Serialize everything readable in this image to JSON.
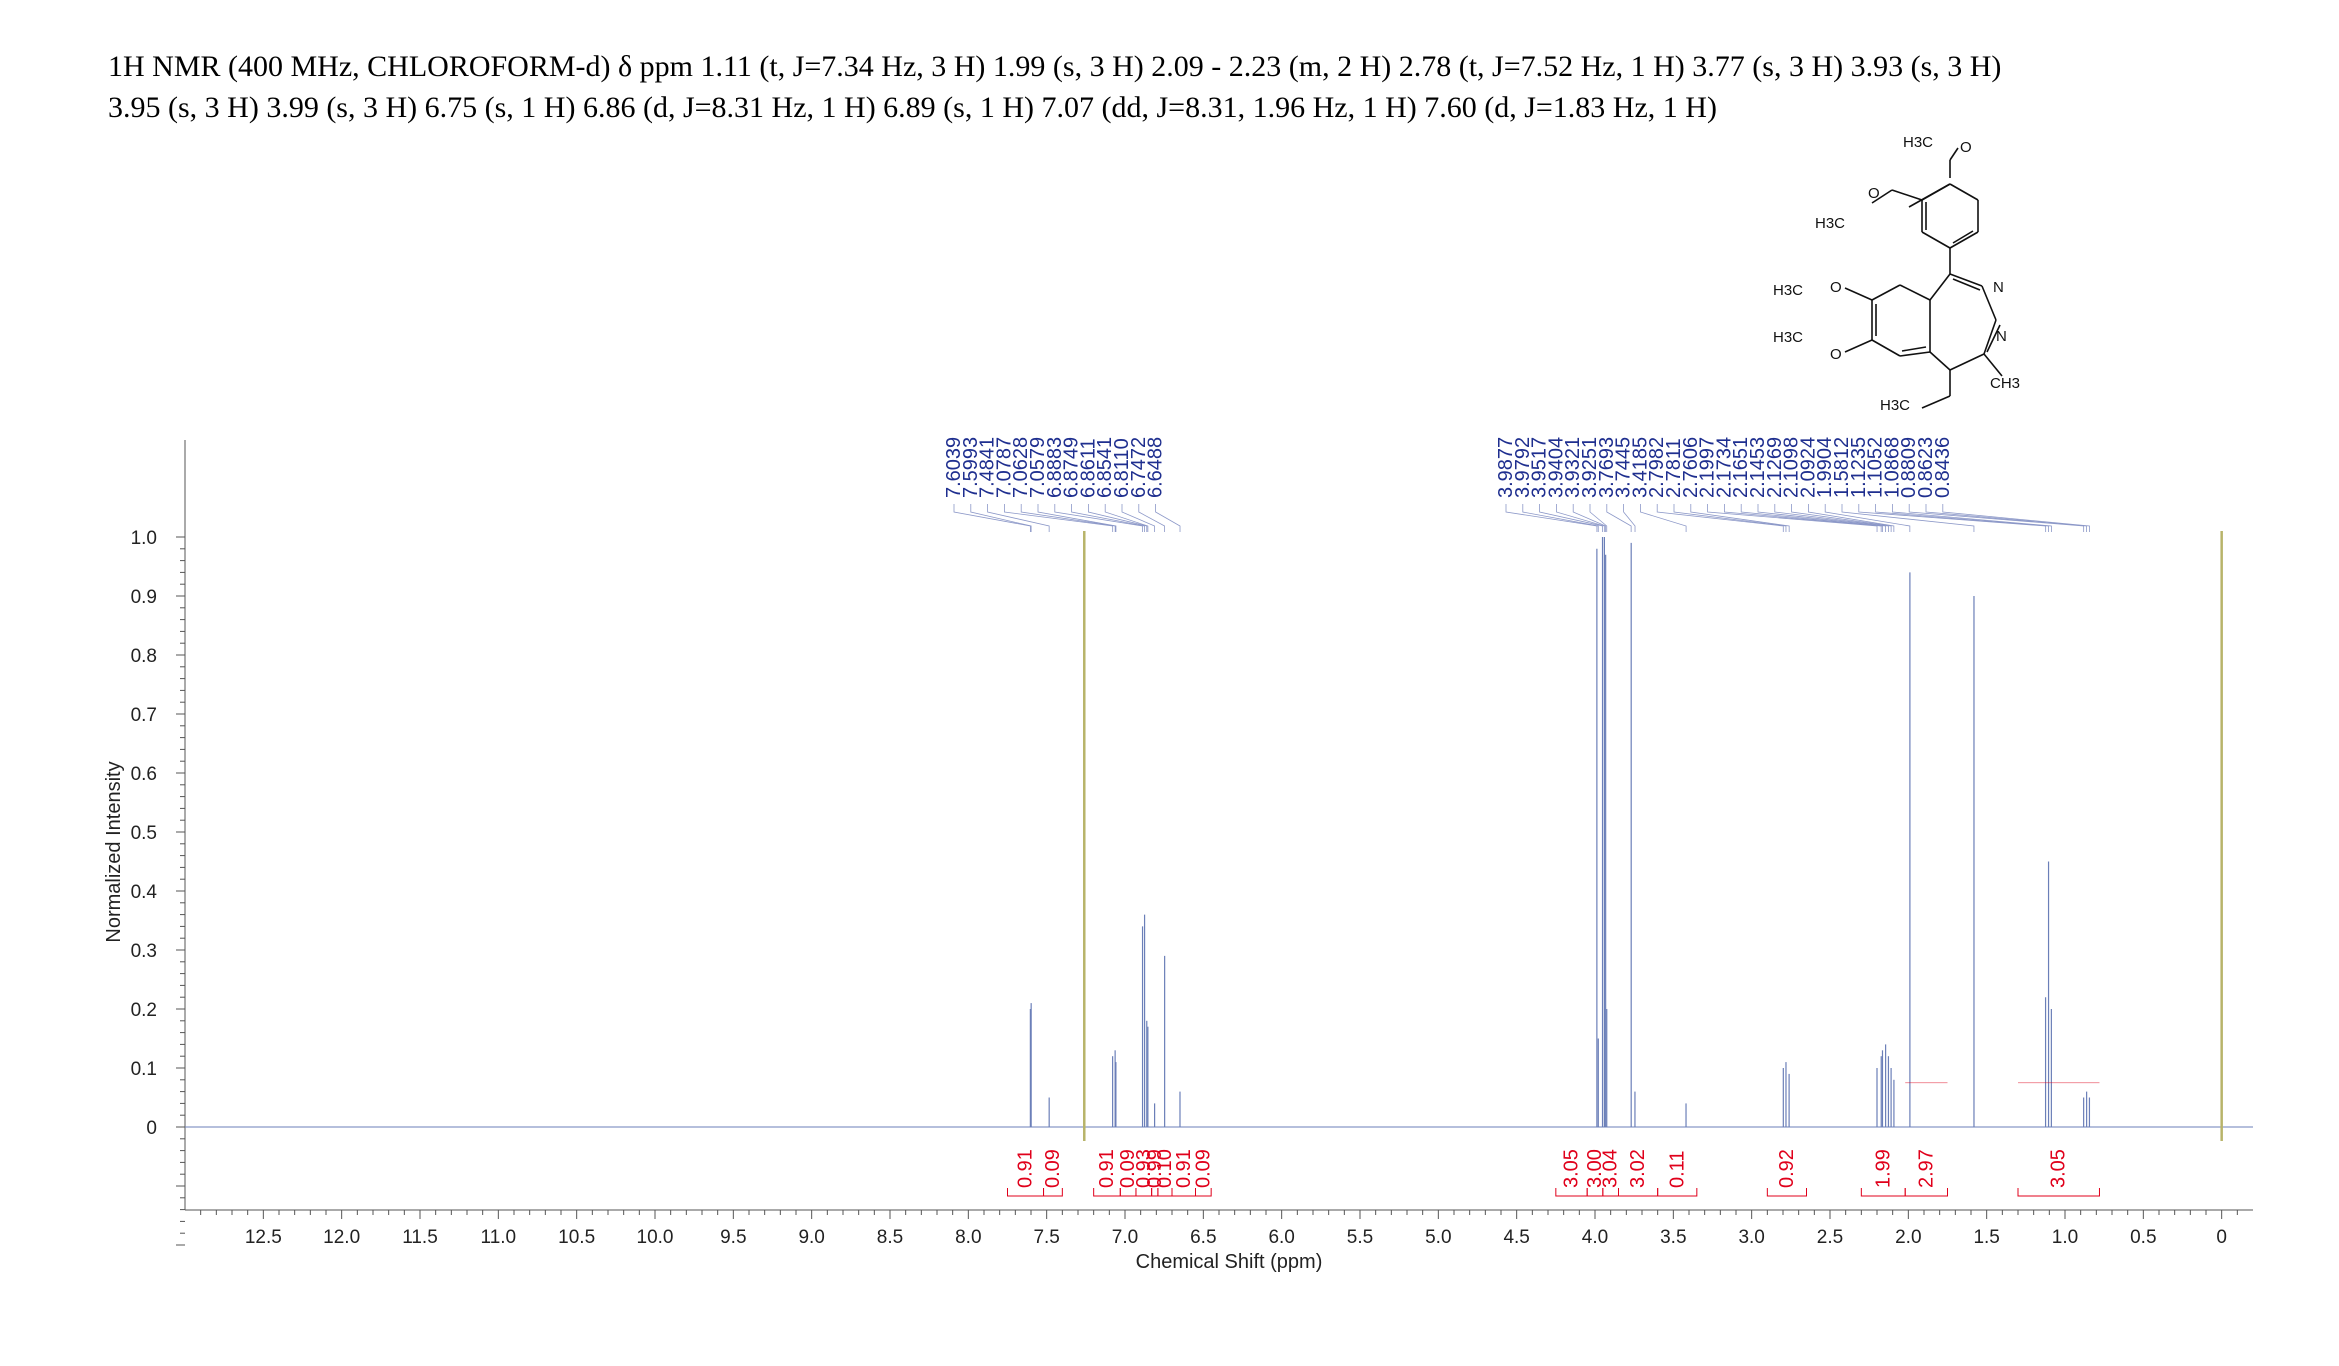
{
  "header": {
    "line1": "1H NMR (400 MHz, CHLOROFORM-d) δ ppm 1.11 (t, J=7.34 Hz, 3 H) 1.99 (s, 3 H) 2.09 - 2.23 (m, 2 H) 2.78 (t, J=7.52 Hz, 1 H) 3.77 (s, 3 H) 3.93 (s, 3 H)",
    "line2": "3.95 (s, 3 H) 3.99 (s, 3 H) 6.75 (s, 1 H) 6.86 (d, J=8.31 Hz, 1 H) 6.89 (s, 1 H) 7.07 (dd, J=8.31, 1.96 Hz, 1 H) 7.60 (d, J=1.83 Hz, 1 H)"
  },
  "structure": {
    "labels": [
      "H3C",
      "O",
      "H3C",
      "O",
      "N",
      "N",
      "H3C",
      "O",
      "H3C",
      "O",
      "CH3",
      "H3C"
    ]
  },
  "colors": {
    "spectrum": "#6b7fb8",
    "solvent_line": "#b8b46a",
    "peak_labels": "#1f2f8f",
    "integrals": "#e0001b",
    "axis": "#555555"
  },
  "chart_data": {
    "type": "line",
    "xlabel": "Chemical Shift (ppm)",
    "ylabel": "Normalized Intensity",
    "xlim": [
      13.0,
      -0.2
    ],
    "ylim": [
      0,
      1.0
    ],
    "x_reversed": true,
    "x_ticks": [
      "12.5",
      "12.0",
      "11.5",
      "11.0",
      "10.5",
      "10.0",
      "9.5",
      "9.0",
      "8.5",
      "8.0",
      "7.5",
      "7.0",
      "6.5",
      "6.0",
      "5.5",
      "5.0",
      "4.5",
      "4.0",
      "3.5",
      "3.0",
      "2.5",
      "2.0",
      "1.5",
      "1.0",
      "0.5",
      "0"
    ],
    "y_ticks": [
      "0",
      "0.1",
      "0.2",
      "0.3",
      "0.4",
      "0.5",
      "0.6",
      "0.7",
      "0.8",
      "0.9",
      "1.0"
    ],
    "peaks": [
      {
        "x": 7.604,
        "y": 0.2
      },
      {
        "x": 7.599,
        "y": 0.21
      },
      {
        "x": 7.484,
        "y": 0.05
      },
      {
        "x": 7.079,
        "y": 0.12
      },
      {
        "x": 7.063,
        "y": 0.13
      },
      {
        "x": 7.058,
        "y": 0.11
      },
      {
        "x": 6.888,
        "y": 0.34
      },
      {
        "x": 6.875,
        "y": 0.36
      },
      {
        "x": 6.861,
        "y": 0.18
      },
      {
        "x": 6.854,
        "y": 0.17
      },
      {
        "x": 6.811,
        "y": 0.04
      },
      {
        "x": 6.747,
        "y": 0.29
      },
      {
        "x": 6.649,
        "y": 0.06
      },
      {
        "x": 3.988,
        "y": 0.98
      },
      {
        "x": 3.979,
        "y": 0.15
      },
      {
        "x": 3.952,
        "y": 1.0
      },
      {
        "x": 3.94,
        "y": 1.0
      },
      {
        "x": 3.932,
        "y": 0.97
      },
      {
        "x": 3.925,
        "y": 0.2
      },
      {
        "x": 3.769,
        "y": 0.99
      },
      {
        "x": 3.745,
        "y": 0.06
      },
      {
        "x": 3.419,
        "y": 0.04
      },
      {
        "x": 2.798,
        "y": 0.1
      },
      {
        "x": 2.781,
        "y": 0.11
      },
      {
        "x": 2.761,
        "y": 0.09
      },
      {
        "x": 2.2,
        "y": 0.1
      },
      {
        "x": 2.173,
        "y": 0.12
      },
      {
        "x": 2.165,
        "y": 0.13
      },
      {
        "x": 2.145,
        "y": 0.14
      },
      {
        "x": 2.127,
        "y": 0.12
      },
      {
        "x": 2.11,
        "y": 0.1
      },
      {
        "x": 2.092,
        "y": 0.08
      },
      {
        "x": 1.99,
        "y": 0.94
      },
      {
        "x": 1.581,
        "y": 0.9
      },
      {
        "x": 1.124,
        "y": 0.22
      },
      {
        "x": 1.105,
        "y": 0.45
      },
      {
        "x": 1.087,
        "y": 0.2
      },
      {
        "x": 0.881,
        "y": 0.05
      },
      {
        "x": 0.862,
        "y": 0.06
      },
      {
        "x": 0.844,
        "y": 0.05
      }
    ],
    "solvent_lines": [
      7.26,
      0.0
    ],
    "peak_labels": [
      "7.6039",
      "7.5993",
      "7.4841",
      "7.0787",
      "7.0628",
      "7.0579",
      "6.8883",
      "6.8749",
      "6.8611",
      "6.8541",
      "6.8110",
      "6.7472",
      "6.6488",
      "3.9877",
      "3.9792",
      "3.9517",
      "3.9404",
      "3.9321",
      "3.9251",
      "3.7693",
      "3.7445",
      "3.4185",
      "2.7982",
      "2.7811",
      "2.7606",
      "2.1997",
      "2.1734",
      "2.1651",
      "2.1453",
      "2.1269",
      "2.1098",
      "2.0924",
      "1.9904",
      "1.5812",
      "1.1235",
      "1.1052",
      "1.0868",
      "0.8809",
      "0.8623",
      "0.8436"
    ],
    "integrals": [
      {
        "from": 7.75,
        "to": 7.52,
        "value": "0.91"
      },
      {
        "from": 7.52,
        "to": 7.4,
        "value": "0.09"
      },
      {
        "from": 7.2,
        "to": 7.03,
        "value": "0.91"
      },
      {
        "from": 7.03,
        "to": 6.93,
        "value": "0.09"
      },
      {
        "from": 6.93,
        "to": 6.83,
        "value": "0.93"
      },
      {
        "from": 6.83,
        "to": 6.79,
        "value": "0.99"
      },
      {
        "from": 6.79,
        "to": 6.7,
        "value": "0.10"
      },
      {
        "from": 6.7,
        "to": 6.55,
        "value": "0.91"
      },
      {
        "from": 6.55,
        "to": 6.45,
        "value": "0.09"
      },
      {
        "from": 4.25,
        "to": 4.05,
        "value": "3.05"
      },
      {
        "from": 4.05,
        "to": 3.95,
        "value": "3.00"
      },
      {
        "from": 3.95,
        "to": 3.85,
        "value": "3.04"
      },
      {
        "from": 3.85,
        "to": 3.6,
        "value": "3.02"
      },
      {
        "from": 3.6,
        "to": 3.35,
        "value": "0.11"
      },
      {
        "from": 2.9,
        "to": 2.65,
        "value": "0.92"
      },
      {
        "from": 2.3,
        "to": 2.02,
        "value": "1.99"
      },
      {
        "from": 2.02,
        "to": 1.75,
        "value": "2.97"
      },
      {
        "from": 1.3,
        "to": 0.78,
        "value": "3.05"
      }
    ]
  }
}
